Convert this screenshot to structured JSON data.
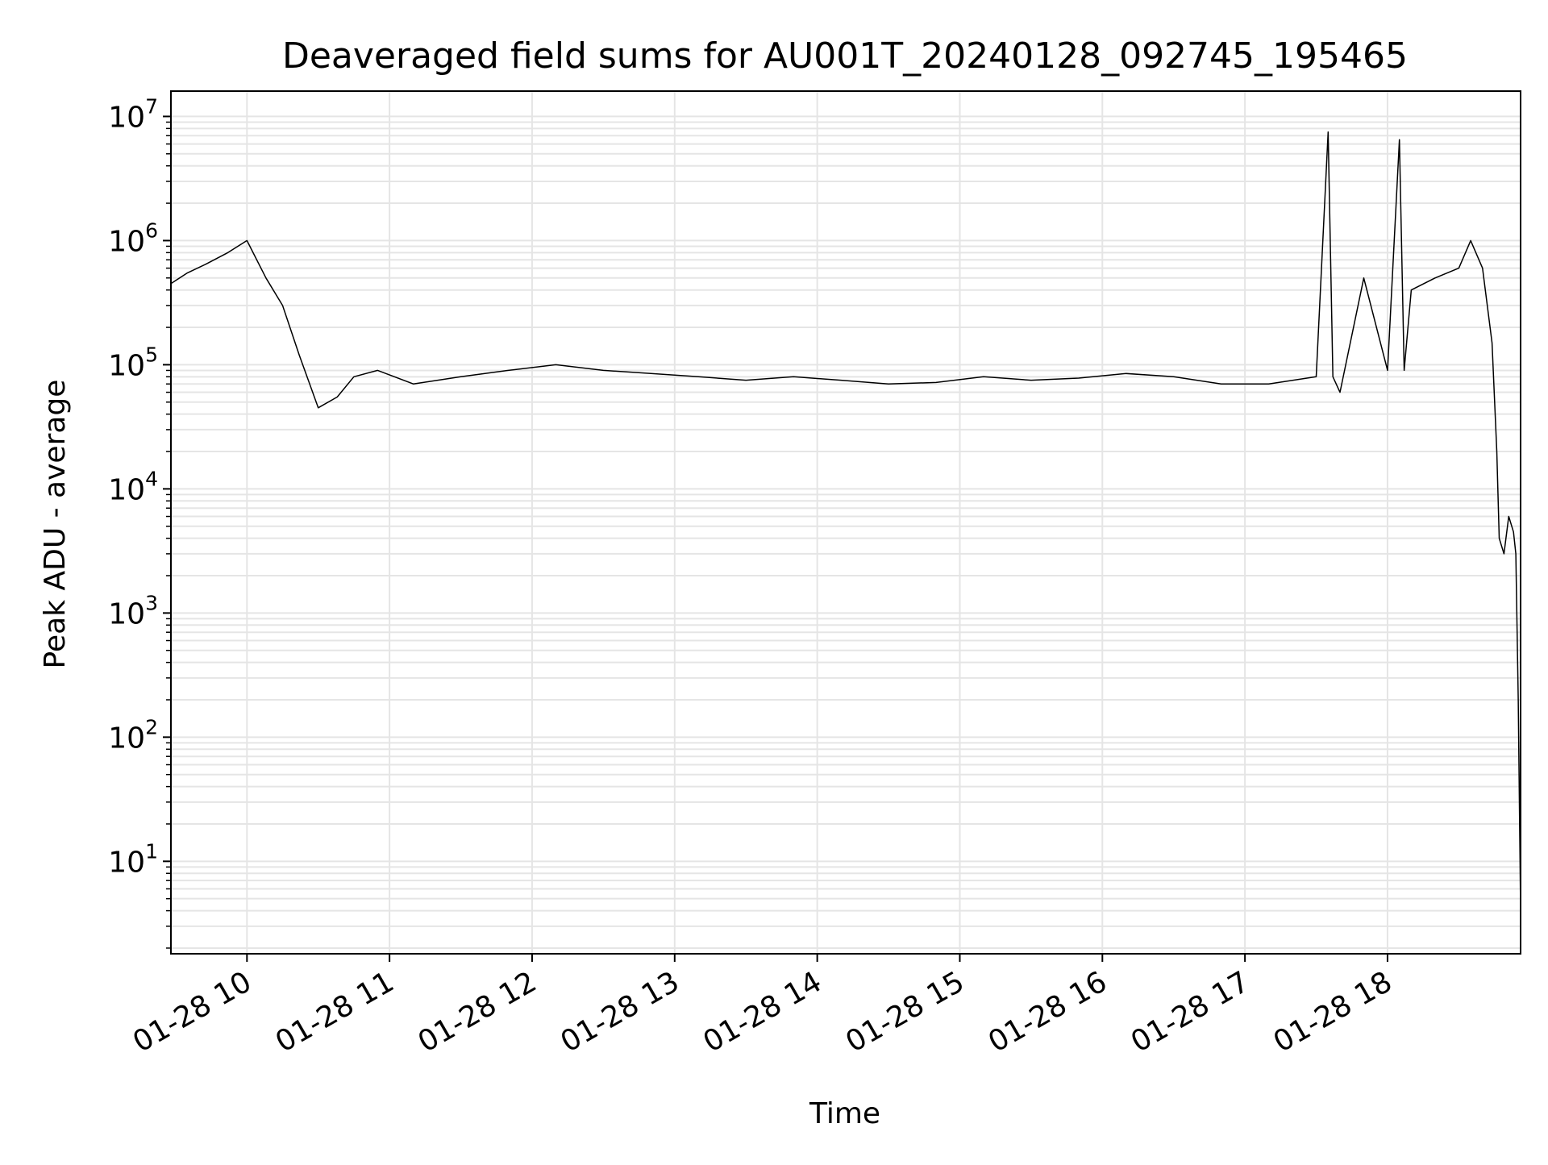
{
  "chart_data": {
    "type": "line",
    "title": "Deaveraged field sums for AU001T_20240128_092745_195465",
    "xlabel": "Time",
    "ylabel": "Peak ADU - average",
    "yscale": "log",
    "grid": true,
    "legend": "none",
    "xlim": [
      "2024-01-28 09:28",
      "2024-01-28 18:56"
    ],
    "ylim": [
      1.8,
      16000000
    ],
    "x_ticks": [
      {
        "value": "2024-01-28 10:00",
        "label": "01-28 10"
      },
      {
        "value": "2024-01-28 11:00",
        "label": "01-28 11"
      },
      {
        "value": "2024-01-28 12:00",
        "label": "01-28 12"
      },
      {
        "value": "2024-01-28 13:00",
        "label": "01-28 13"
      },
      {
        "value": "2024-01-28 14:00",
        "label": "01-28 14"
      },
      {
        "value": "2024-01-28 15:00",
        "label": "01-28 15"
      },
      {
        "value": "2024-01-28 16:00",
        "label": "01-28 16"
      },
      {
        "value": "2024-01-28 17:00",
        "label": "01-28 17"
      },
      {
        "value": "2024-01-28 18:00",
        "label": "01-28 18"
      }
    ],
    "y_ticks": [
      {
        "value": 10,
        "base": "10",
        "exp": "1"
      },
      {
        "value": 100,
        "base": "10",
        "exp": "2"
      },
      {
        "value": 1000,
        "base": "10",
        "exp": "3"
      },
      {
        "value": 10000,
        "base": "10",
        "exp": "4"
      },
      {
        "value": 100000,
        "base": "10",
        "exp": "5"
      },
      {
        "value": 1000000,
        "base": "10",
        "exp": "6"
      },
      {
        "value": 10000000,
        "base": "10",
        "exp": "7"
      }
    ],
    "line_color": "#000000",
    "grid_color": "#e5e5e5",
    "series": [
      {
        "x": [
          "2024-01-28 09:28",
          "2024-01-28 09:35",
          "2024-01-28 09:43",
          "2024-01-28 09:52",
          "2024-01-28 10:00",
          "2024-01-28 10:08",
          "2024-01-28 10:15",
          "2024-01-28 10:22",
          "2024-01-28 10:30",
          "2024-01-28 10:38",
          "2024-01-28 10:45",
          "2024-01-28 10:55",
          "2024-01-28 11:10",
          "2024-01-28 11:30",
          "2024-01-28 11:50",
          "2024-01-28 12:10",
          "2024-01-28 12:30",
          "2024-01-28 12:50",
          "2024-01-28 13:10",
          "2024-01-28 13:30",
          "2024-01-28 13:50",
          "2024-01-28 14:10",
          "2024-01-28 14:30",
          "2024-01-28 14:50",
          "2024-01-28 15:10",
          "2024-01-28 15:30",
          "2024-01-28 15:50",
          "2024-01-28 16:10",
          "2024-01-28 16:30",
          "2024-01-28 16:50",
          "2024-01-28 17:10",
          "2024-01-28 17:30",
          "2024-01-28 17:35",
          "2024-01-28 17:37",
          "2024-01-28 17:40",
          "2024-01-28 17:50",
          "2024-01-28 18:00",
          "2024-01-28 18:05",
          "2024-01-28 18:07",
          "2024-01-28 18:10",
          "2024-01-28 18:20",
          "2024-01-28 18:30",
          "2024-01-28 18:35",
          "2024-01-28 18:40",
          "2024-01-28 18:44",
          "2024-01-28 18:46",
          "2024-01-28 18:47",
          "2024-01-28 18:49",
          "2024-01-28 18:51",
          "2024-01-28 18:53",
          "2024-01-28 18:54",
          "2024-01-28 18:55",
          "2024-01-28 18:56"
        ],
        "y": [
          450000,
          550000,
          650000,
          800000,
          1000000,
          500000,
          300000,
          120000,
          45000,
          55000,
          80000,
          90000,
          70000,
          80000,
          90000,
          100000,
          90000,
          85000,
          80000,
          75000,
          80000,
          75000,
          70000,
          72000,
          80000,
          75000,
          78000,
          85000,
          80000,
          70000,
          70000,
          80000,
          7500000,
          80000,
          60000,
          500000,
          90000,
          6500000,
          90000,
          400000,
          500000,
          600000,
          1000000,
          600000,
          150000,
          20000,
          4000,
          3000,
          6000,
          4500,
          3000,
          200,
          4
        ]
      }
    ]
  }
}
